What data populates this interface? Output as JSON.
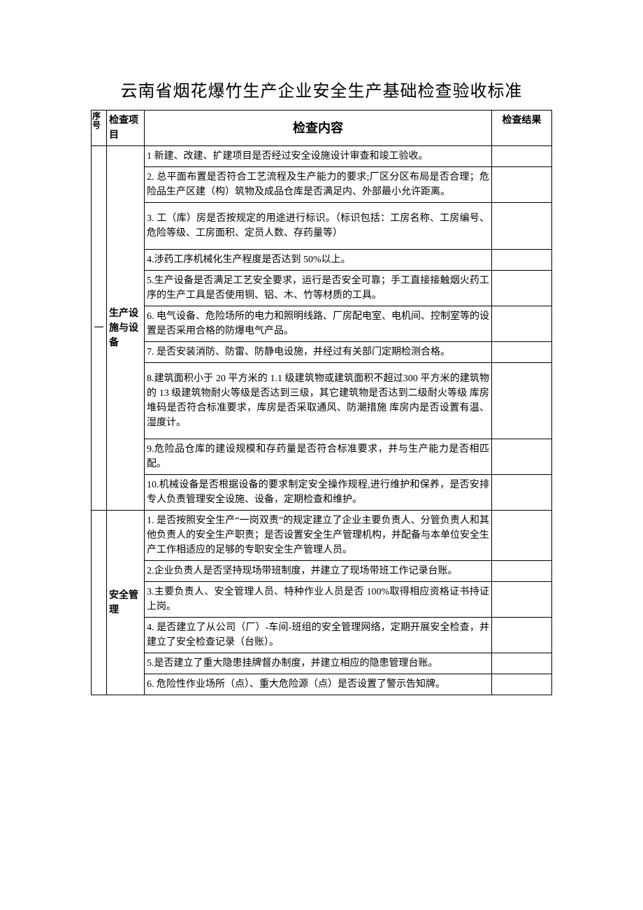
{
  "title": "云南省烟花爆竹生产企业安全生产基础检查验收标准",
  "headers": {
    "num": "序号",
    "item": "检查项目",
    "content": "检查内容",
    "result": "检查结果"
  },
  "groups": [
    {
      "num": "一",
      "item": "生产设施与设备",
      "rows": [
        {
          "text": "1 新建、改建、扩建项目是否经过安全设施设计审查和竣工验收。"
        },
        {
          "text": "2. 总平面布置是否符合工艺流程及生产能力的要求;厂区分区布局是否合理；危险品生产区建（构）筑物及成品仓库是否满足内、外部最小允许距离。"
        },
        {
          "text": "3. 工（库）房是否按规定的用途进行标识。（标识包括：工房名称、工房编号、危险等级、工房面积、定员人数、存药量等）",
          "tall": true
        },
        {
          "text": "4.涉药工序机械化生产程度是否达到 50%以上。"
        },
        {
          "text": "5.生产设备是否满足工艺安全要求，运行是否安全可靠；手工直接接触烟火药工序的生产工具是否使用铜、铝、木、竹等材质的工具。"
        },
        {
          "text": "6. 电气设备、危险场所的电力和照明线路、厂房配电室、电机间、控制室等的设置是否采用合格的防爆电气产品。"
        },
        {
          "text": "7. 是否安装消防、防雷、防静电设施，并经过有关部门定期检测合格。"
        },
        {
          "text": "8.建筑面积小于 20 平方米的 1.1 级建筑物或建筑面积不超过300 平方米的建筑物的 13 级建筑物耐火等级是否达到三级，其它建筑物是否达到二级耐火等级 库房堆码是否符合标准要求，库房是否采取通风、防潮措施 库房内是否设置有温、湿度计。",
          "tall": true
        },
        {
          "text": "9.危险品仓库的建设规模和存药量是否符合标准要求，并与生产能力是否相匹配。"
        },
        {
          "text": "10.机械设备是否根据设备的要求制定安全操作规程,进行维护和保养，是否安排专人负责管理安全设施、设备，定期检查和维护。"
        }
      ]
    },
    {
      "num": "",
      "item": "安全管理",
      "rows": [
        {
          "text": "1. 是否按照安全生产“一岗双责”的规定建立了企业主要负责人、分管负责人和其他负责人的安全生产职责；是否设置安全生产管理机构，并配备与本单位安全生产工作相适应的足够的专职安全生产管理人员。"
        },
        {
          "text": "2.企业负责人是否坚持现场带班制度，并建立了现场带班工作记录台账。"
        },
        {
          "text": "3.主要负责人、安全管理人员、特种作业人员是否 100%取得相应资格证书持证上岗。"
        },
        {
          "text": "4. 是否建立了从公司（厂）-车间-班组的安全管理网络，定期开展安全检查，并建立了安全检查记录（台账）。"
        },
        {
          "text": "5.是否建立了重大隐患挂牌督办制度，并建立相应的隐患管理台账。"
        },
        {
          "text": "6. 危险性作业场所（点）、重大危险源（点）是否设置了警示告知牌。"
        }
      ]
    }
  ]
}
